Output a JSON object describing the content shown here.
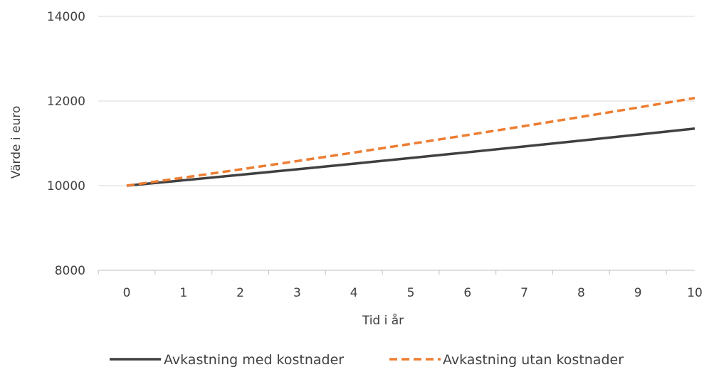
{
  "chart_data": {
    "type": "line",
    "title": "",
    "xlabel": "Tid i år",
    "ylabel": "Värde i euro",
    "x": [
      0,
      1,
      2,
      3,
      4,
      5,
      6,
      7,
      8,
      9,
      10
    ],
    "ylim": [
      8000,
      14000
    ],
    "yticks": [
      8000,
      10000,
      12000,
      14000
    ],
    "grid": true,
    "legend_position": "bottom",
    "series": [
      {
        "name": "Avkastning med kostnader",
        "color": "#404040",
        "style": "solid",
        "values": [
          10000,
          10127,
          10256,
          10387,
          10519,
          10653,
          10789,
          10926,
          11065,
          11206,
          11349
        ]
      },
      {
        "name": "Avkastning utan kostnader",
        "color": "#ED7D31",
        "style": "dashed",
        "values": [
          10000,
          10190,
          10384,
          10581,
          10782,
          10987,
          11196,
          11408,
          11625,
          11846,
          12071
        ]
      }
    ]
  }
}
